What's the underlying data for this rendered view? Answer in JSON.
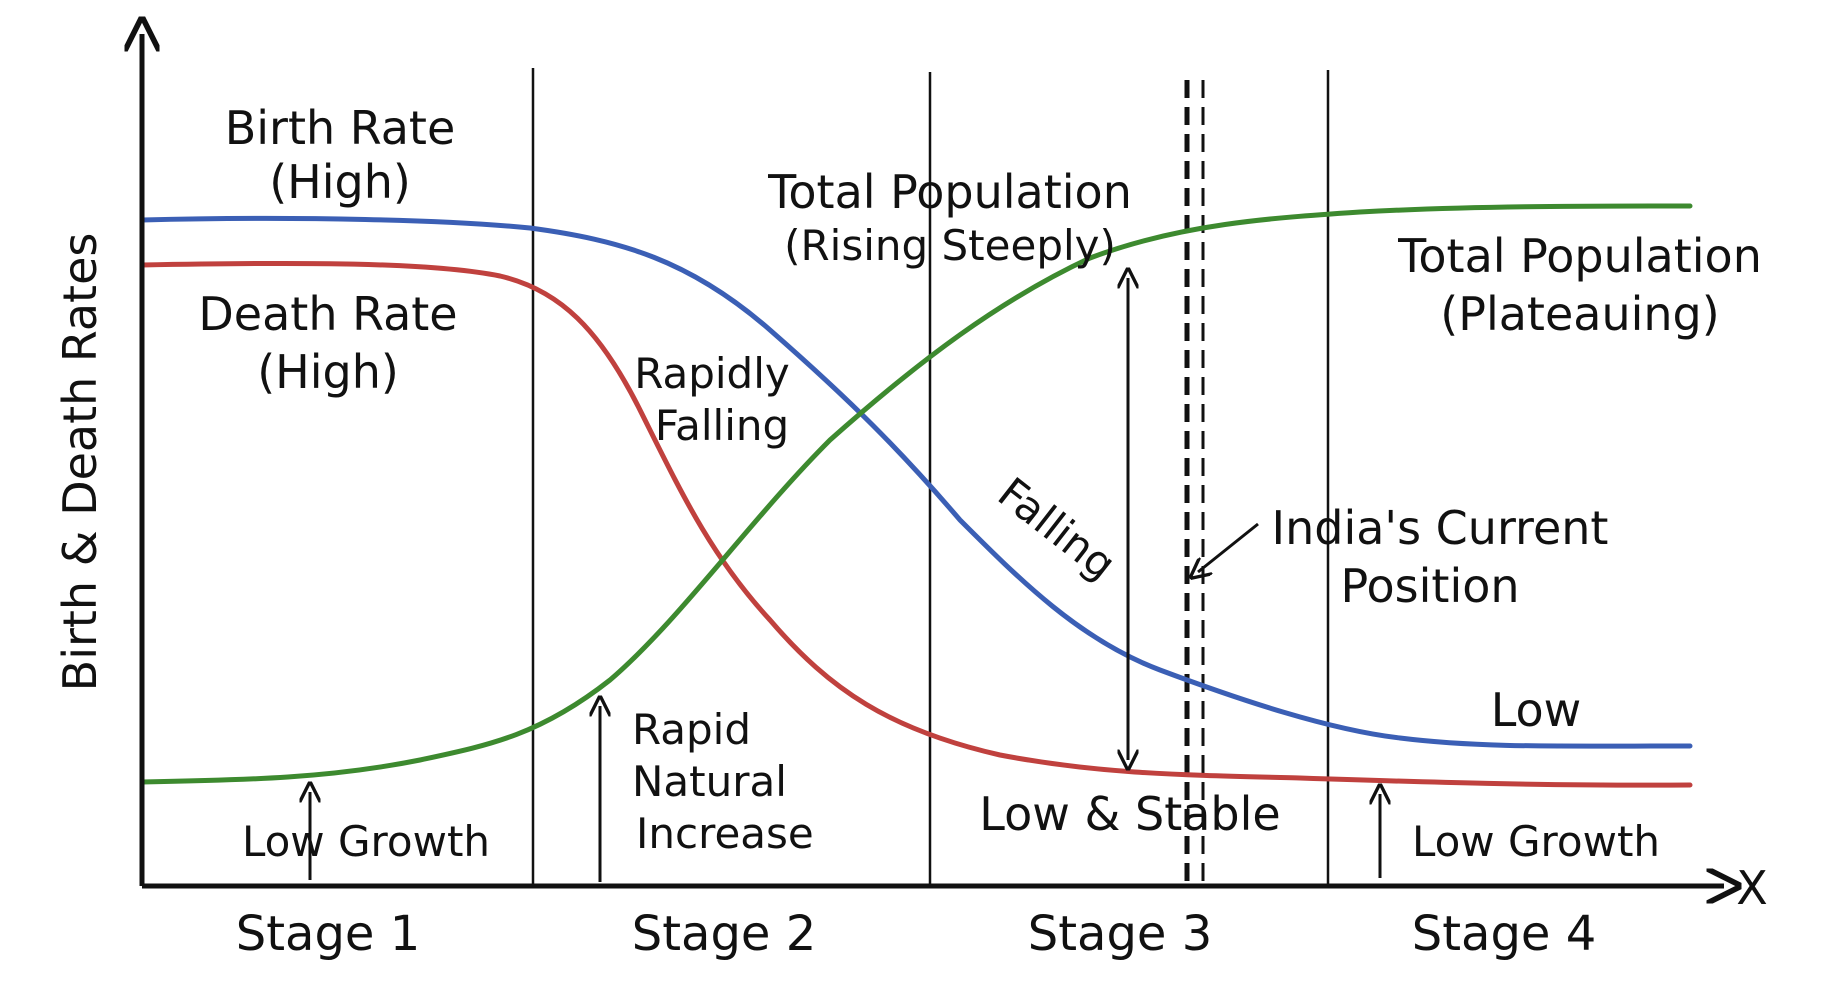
{
  "diagram": {
    "y_axis_label": "Birth & Death Rates",
    "x_axis_label": "X",
    "stages": [
      "Stage 1",
      "Stage 2",
      "Stage 3",
      "Stage 4"
    ],
    "annotations": {
      "birth_rate_high": [
        "Birth Rate",
        "(High)"
      ],
      "death_rate_high": [
        "Death Rate",
        "(High)"
      ],
      "total_pop_rising": [
        "Total Population",
        "(Rising Steeply)"
      ],
      "total_pop_plateau": [
        "Total Population",
        "(Plateauing)"
      ],
      "rapidly_falling": [
        "Rapidly",
        "Falling"
      ],
      "falling": "Falling",
      "india_position": [
        "India's Current",
        "Position"
      ],
      "low": "Low",
      "low_stable": "Low & Stable",
      "low_growth_1": "Low Growth",
      "low_growth_4": "Low Growth",
      "rapid_increase": [
        "Rapid",
        "Natural",
        "Increase"
      ]
    },
    "series_colors": {
      "birth_rate": "#3b5fb5",
      "death_rate": "#c0413e",
      "total_population": "#3d8a2f"
    },
    "marker_style": "dashed double line (India's current position, within Stage 3)"
  }
}
